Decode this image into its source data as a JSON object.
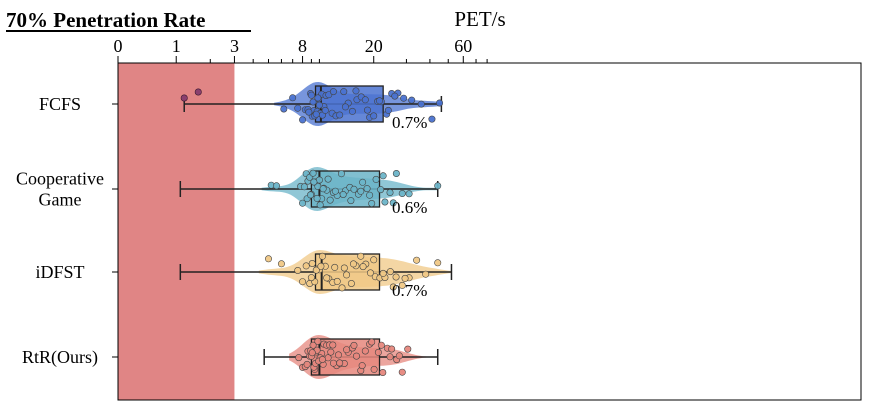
{
  "chart_data": {
    "type": "box",
    "title": "70% Penetration Rate",
    "xlabel": "PET/s",
    "ylabel": "",
    "x_scale": "log (x+1)",
    "xlim": [
      0,
      80
    ],
    "x_ticks": [
      0,
      1,
      3,
      8,
      20,
      60
    ],
    "x_tick_labels": [
      "0",
      "1",
      "3",
      "8",
      "20",
      "60"
    ],
    "highlight_region": {
      "from": 0,
      "to": 3,
      "color": "#e08585"
    },
    "categories": [
      "FCFS",
      "Cooperative Game",
      "iDFST",
      "RtR(Ours)"
    ],
    "category_labels": [
      [
        "FCFS"
      ],
      [
        "Cooperative",
        "Game"
      ],
      [
        "iDFST"
      ],
      [
        "RtR(Ours)"
      ]
    ],
    "series": [
      {
        "name": "FCFS",
        "color": "#4a72d0",
        "whisker_low": 1.2,
        "q1": 9.5,
        "median": 10.2,
        "q3": 22.5,
        "whisker_high": 46,
        "annotation": "0.7%",
        "outliers": [
          1.2,
          1.6
        ],
        "spread": [
          6.2,
          7.0,
          7.5,
          8.0,
          8.3,
          8.6,
          8.9,
          9.1,
          9.3,
          9.5,
          9.7,
          9.9,
          10.1,
          10.3,
          10.6,
          10.9,
          11.3,
          11.8,
          12.4,
          13.0,
          13.7,
          14.5,
          15.3,
          16.2,
          17.1,
          18.0,
          19.0,
          20.0,
          21.0,
          22.0,
          23.5,
          25.0,
          27.0,
          29.0,
          32.0,
          36.0,
          41.0,
          45.0,
          8.7,
          9.0,
          9.2,
          9.4,
          9.6,
          9.8,
          10.0,
          10.4,
          10.8,
          12.0,
          14.0,
          16.0,
          18.5,
          21.5,
          24.0,
          26.0
        ]
      },
      {
        "name": "Cooperative Game",
        "color": "#6bb4c8",
        "whisker_low": 1.1,
        "q1": 9.0,
        "median": 10.0,
        "q3": 21.5,
        "whisker_high": 44,
        "annotation": "0.6%",
        "outliers": [],
        "spread": [
          5.2,
          5.6,
          7.8,
          8.0,
          8.2,
          8.4,
          8.6,
          8.8,
          9.0,
          9.2,
          9.4,
          9.6,
          9.8,
          10.0,
          10.3,
          10.6,
          11.0,
          11.5,
          12.0,
          12.6,
          13.3,
          14.0,
          14.8,
          15.6,
          16.5,
          17.4,
          18.4,
          19.5,
          20.6,
          21.8,
          23.0,
          24.5,
          26.5,
          28.5,
          31.0,
          44.0,
          8.5,
          8.9,
          9.3,
          9.7,
          10.1,
          10.5,
          11.2,
          12.3,
          13.6,
          15.0,
          17.0,
          19.0,
          22.5,
          25.5
        ]
      },
      {
        "name": "iDFST",
        "color": "#f0c886",
        "whisker_low": 1.1,
        "q1": 9.5,
        "median": 10.3,
        "q3": 21.5,
        "whisker_high": 52,
        "annotation": "0.7%",
        "outliers": [],
        "spread": [
          5.0,
          6.0,
          7.5,
          8.0,
          8.4,
          8.8,
          9.1,
          9.4,
          9.7,
          10.0,
          10.4,
          10.8,
          11.3,
          11.9,
          12.6,
          13.4,
          14.2,
          15.1,
          16.0,
          17.0,
          18.1,
          19.2,
          20.4,
          21.6,
          23.0,
          24.6,
          26.4,
          28.5,
          31.0,
          34.0,
          38.0,
          44.0,
          9.0,
          9.6,
          10.2,
          11.0,
          12.2,
          13.8,
          15.5,
          17.5,
          20.0,
          22.5,
          25.5,
          29.5
        ]
      },
      {
        "name": "RtR(Ours)",
        "color": "#e6877d",
        "whisker_low": 4.7,
        "q1": 9.0,
        "median": 10.0,
        "q3": 21.5,
        "whisker_high": 44,
        "annotation": "",
        "outliers": [],
        "spread": [
          7.6,
          8.0,
          8.3,
          8.6,
          8.8,
          9.0,
          9.2,
          9.4,
          9.6,
          9.8,
          10.0,
          10.3,
          10.6,
          11.0,
          11.4,
          11.9,
          12.5,
          13.1,
          13.8,
          14.5,
          15.3,
          16.1,
          17.0,
          18.0,
          19.0,
          20.1,
          21.2,
          22.4,
          23.7,
          25.0,
          26.6,
          28.5,
          30.5,
          8.5,
          8.9,
          9.3,
          9.7,
          10.1,
          10.5,
          11.2,
          12.0,
          13.0,
          14.2,
          15.6,
          17.3,
          19.5,
          22.0,
          24.5,
          27.5,
          9.1,
          9.5,
          9.9,
          10.4,
          11.6,
          12.8
        ]
      }
    ]
  }
}
